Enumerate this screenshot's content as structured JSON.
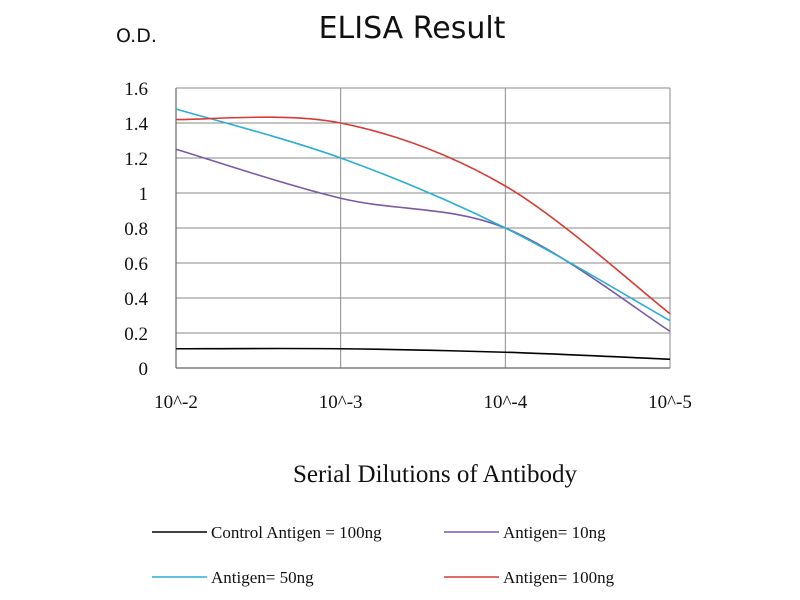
{
  "chart_data": {
    "type": "line",
    "title": "ELISA Result",
    "ylabel": "O.D.",
    "xlabel": "Serial Dilutions of Antibody",
    "x": [
      "10^-2",
      "10^-3",
      "10^-4",
      "10^-5"
    ],
    "ylim": [
      0,
      1.6
    ],
    "yticks": [
      "0",
      "0.2",
      "0.4",
      "0.6",
      "0.8",
      "1",
      "1.2",
      "1.4",
      "1.6"
    ],
    "grid": true,
    "legend_position": "bottom",
    "series": [
      {
        "name": "Control Antigen = 100ng",
        "color": "#000000",
        "values": [
          0.11,
          0.11,
          0.09,
          0.05
        ]
      },
      {
        "name": "Antigen= 10ng",
        "color": "#7a59a8",
        "values": [
          1.25,
          0.97,
          0.8,
          0.21
        ]
      },
      {
        "name": "Antigen= 50ng",
        "color": "#2aaed6",
        "values": [
          1.48,
          1.2,
          0.8,
          0.27
        ]
      },
      {
        "name": "Antigen= 100ng",
        "color": "#d93a35",
        "values": [
          1.42,
          1.4,
          1.04,
          0.31
        ]
      }
    ]
  }
}
